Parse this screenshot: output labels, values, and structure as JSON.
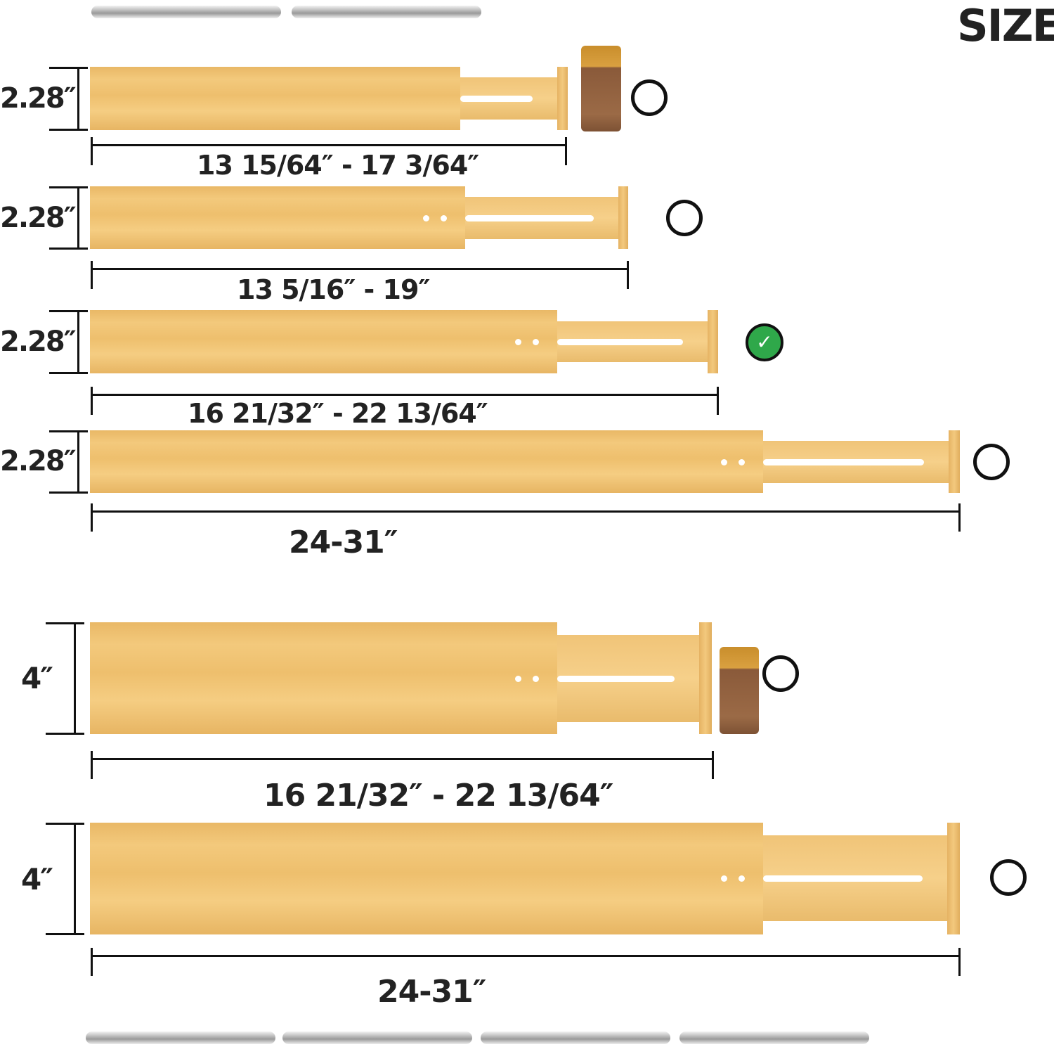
{
  "title": "SIZE",
  "dividers": [
    {
      "height": "2.28″",
      "length": "13 15/64″  - 17 3/64″",
      "accessory": "spice-jar",
      "selected": false
    },
    {
      "height": "2.28″",
      "length": "13 5/16″  - 19″",
      "selected": false
    },
    {
      "height": "2.28″",
      "length": "16 21/32″  - 22 13/64″",
      "selected": true
    },
    {
      "height": "2.28″",
      "length": "24-31″",
      "selected": false
    },
    {
      "height": "4″",
      "length": "16 21/32″  - 22 13/64″",
      "accessory": "spice-jar",
      "selected": false
    },
    {
      "height": "4″",
      "length": "24-31″",
      "selected": false
    }
  ],
  "colors": {
    "wood": "#f0c478",
    "check": "#2fa84a",
    "ink": "#111111"
  },
  "icons": {
    "selected": "check-circle-icon",
    "unselected": "empty-circle-icon",
    "decor": "fork-icon"
  }
}
